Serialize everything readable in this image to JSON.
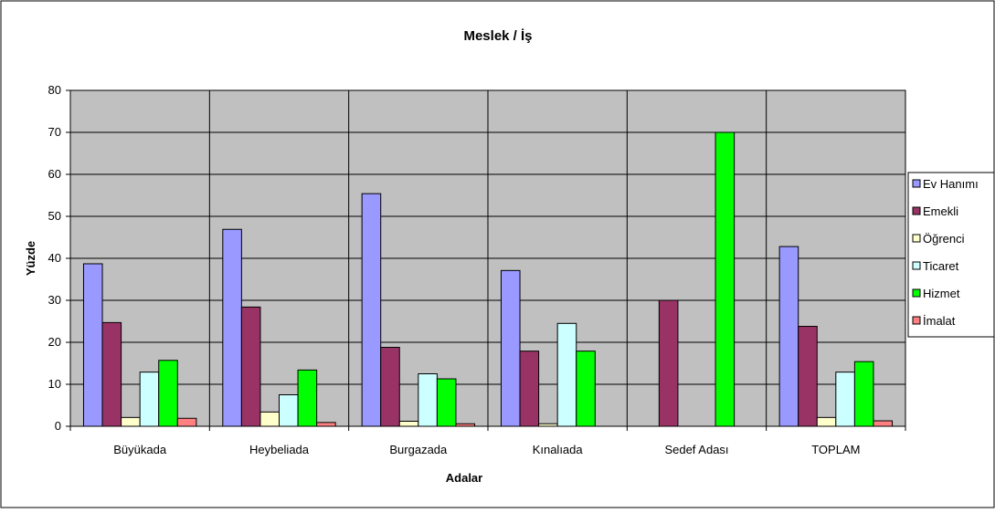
{
  "chart_data": {
    "type": "bar",
    "title": "Meslek / İş",
    "xlabel": "Adalar",
    "ylabel": "Yüzde",
    "ylim": [
      0,
      80
    ],
    "yticks": [
      0,
      10,
      20,
      30,
      40,
      50,
      60,
      70,
      80
    ],
    "grid": true,
    "legend_position": "right",
    "categories": [
      "Büyükada",
      "Heybeliada",
      "Burgazada",
      "Kınalıada",
      "Sedef Adası",
      "TOPLAM"
    ],
    "series": [
      {
        "name": "Ev Hanımı",
        "color": "#9999FF",
        "values": [
          38.7,
          46.9,
          55.4,
          37.1,
          0,
          42.8
        ]
      },
      {
        "name": "Emekli",
        "color": "#993366",
        "values": [
          24.7,
          28.4,
          18.8,
          17.9,
          30.0,
          23.8
        ]
      },
      {
        "name": "Öğrenci",
        "color": "#FFFFCC",
        "values": [
          2.1,
          3.4,
          1.2,
          0.6,
          0,
          2.1
        ]
      },
      {
        "name": "Ticaret",
        "color": "#CCFFFF",
        "values": [
          12.9,
          7.5,
          12.5,
          24.5,
          0,
          12.9
        ]
      },
      {
        "name": "Hizmet",
        "color": "#00FF00",
        "values": [
          15.7,
          13.4,
          11.3,
          17.9,
          70.0,
          15.4
        ]
      },
      {
        "name": "İmalat",
        "color": "#FF8080",
        "values": [
          1.9,
          0.9,
          0.6,
          0,
          0,
          1.3
        ]
      }
    ],
    "colors": {
      "plot_background": "#C0C0C0",
      "gridline": "#000000"
    }
  }
}
